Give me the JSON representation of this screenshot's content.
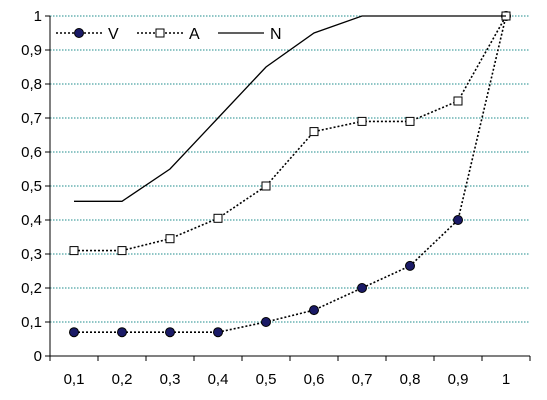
{
  "chart_data": {
    "type": "line",
    "title": "",
    "xlabel": "",
    "ylabel": "",
    "categories": [
      "0,1",
      "0,2",
      "0,3",
      "0,4",
      "0,5",
      "0,6",
      "0,7",
      "0,8",
      "0,9",
      "1"
    ],
    "y_ticks": [
      "0",
      "0,1",
      "0,2",
      "0,3",
      "0,4",
      "0,5",
      "0,6",
      "0,7",
      "0,8",
      "0,9",
      "1"
    ],
    "ylim": [
      0,
      1
    ],
    "grid": "horizontal dotted",
    "legend_position": "top-left",
    "series": [
      {
        "name": "V",
        "marker": "filled-circle",
        "line_style": "dotted",
        "color": "#1a1a66",
        "values": [
          0.07,
          0.07,
          0.07,
          0.07,
          0.1,
          0.135,
          0.2,
          0.265,
          0.4,
          1.0
        ]
      },
      {
        "name": "A",
        "marker": "open-square",
        "line_style": "dotted",
        "color": "#000000",
        "values": [
          0.31,
          0.31,
          0.345,
          0.405,
          0.5,
          0.66,
          0.69,
          0.69,
          0.75,
          1.0
        ]
      },
      {
        "name": "N",
        "marker": "none",
        "line_style": "solid",
        "color": "#000000",
        "values": [
          0.455,
          0.455,
          0.55,
          0.7,
          0.85,
          0.95,
          1.0,
          1.0,
          1.0,
          1.0
        ]
      }
    ]
  }
}
